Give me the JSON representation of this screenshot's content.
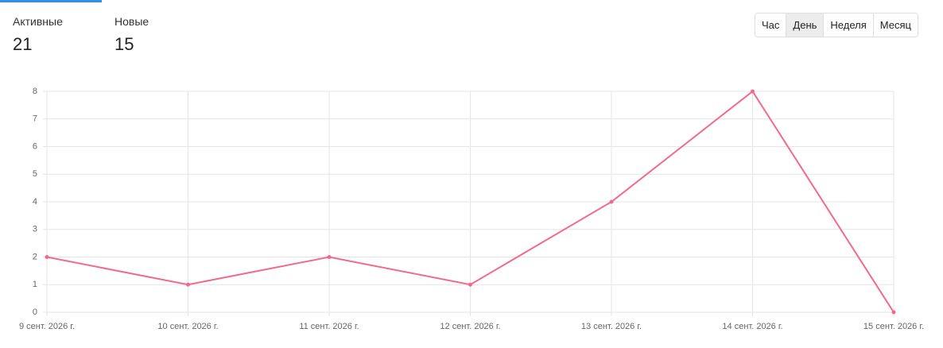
{
  "stats": [
    {
      "label": "Активные",
      "value": "21"
    },
    {
      "label": "Новые",
      "value": "15"
    }
  ],
  "buttons": [
    {
      "label": "Час"
    },
    {
      "label": "День",
      "active": true
    },
    {
      "label": "Неделя"
    },
    {
      "label": "Месяц"
    }
  ],
  "chart_data": {
    "type": "line",
    "categories": [
      "9 сент. 2026 г.",
      "10 сент. 2026 г.",
      "11 сент. 2026 г.",
      "12 сент. 2026 г.",
      "13 сент. 2026 г.",
      "14 сент. 2026 г.",
      "15 сент. 2026 г."
    ],
    "values": [
      2,
      1,
      2,
      1,
      4,
      8,
      0
    ],
    "color": "#f06b8b",
    "ylim": [
      0,
      8
    ],
    "yticks": [
      0,
      1,
      2,
      3,
      4,
      5,
      6,
      7,
      8
    ],
    "grid": true
  }
}
